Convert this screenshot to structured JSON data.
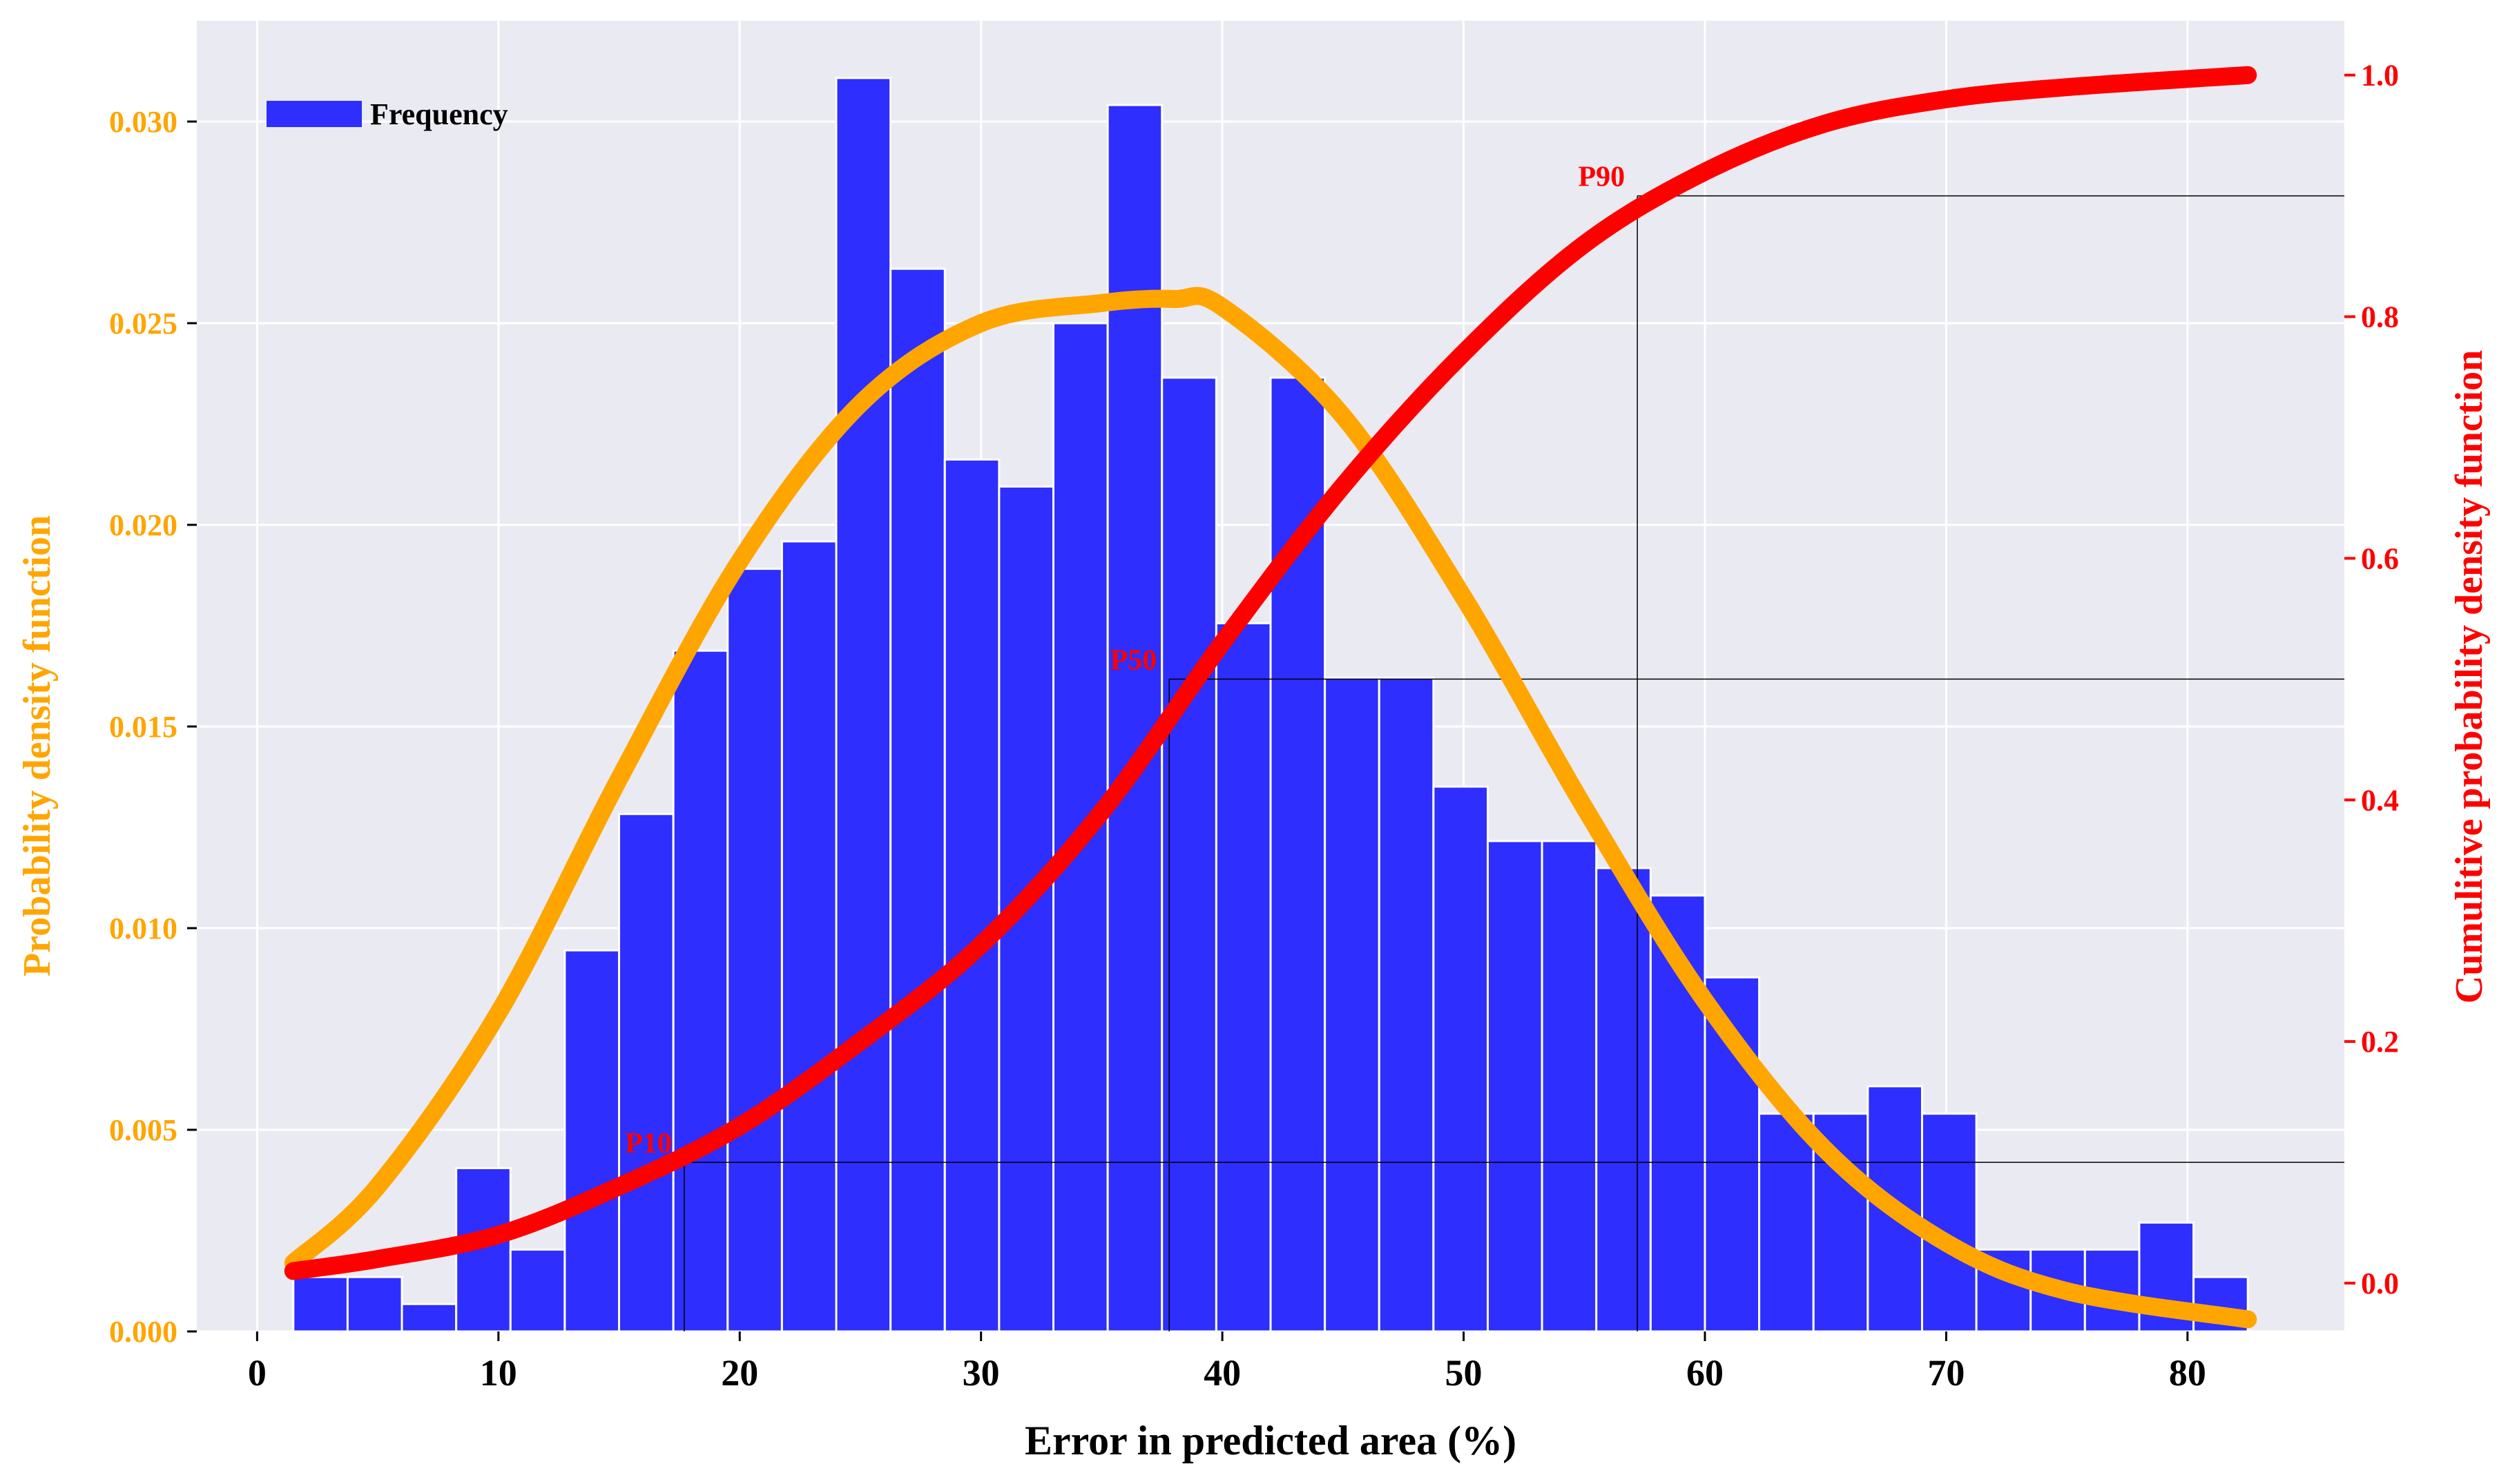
{
  "chart_data": {
    "type": "bar",
    "xlabel": "Error in predicted area (%)",
    "ylabel": "Probability density function",
    "y2label": "Cumulitive probability density function",
    "x_ticks": [
      "0",
      "10",
      "20",
      "30",
      "40",
      "50",
      "60",
      "70",
      "80"
    ],
    "y_ticks": [
      "0.000",
      "0.005",
      "0.010",
      "0.015",
      "0.020",
      "0.025",
      "0.030"
    ],
    "y2_ticks": [
      "0.0",
      "0.2",
      "0.4",
      "0.6",
      "0.8",
      "1.0"
    ],
    "xlim": [
      -2.5,
      86.5
    ],
    "ylim": [
      0.0,
      0.0325
    ],
    "y2lim": [
      -0.04,
      1.045
    ],
    "grid": true,
    "legend_position": "top-left",
    "bins": {
      "start": 1.5,
      "width": 2.25,
      "values": [
        0.00135,
        0.00135,
        0.00068,
        0.00405,
        0.00203,
        0.00945,
        0.01283,
        0.01688,
        0.01891,
        0.01959,
        0.03108,
        0.02635,
        0.02162,
        0.02095,
        0.025,
        0.03041,
        0.02365,
        0.01756,
        0.02365,
        0.01621,
        0.01621,
        0.01351,
        0.01216,
        0.01216,
        0.01149,
        0.01081,
        0.00878,
        0.0054,
        0.0054,
        0.00608,
        0.0054,
        0.00203,
        0.00203,
        0.00203,
        0.0027,
        0.00135
      ]
    },
    "series": [
      {
        "name": "Frequency",
        "type": "bar",
        "axis": "left",
        "color": "#2E2EFF"
      },
      {
        "type": "line",
        "axis": "left",
        "color": "#FFA500",
        "x": [
          1.5,
          5,
          10,
          15,
          20,
          25,
          30,
          35,
          38,
          40,
          45,
          50,
          55,
          60,
          65,
          70,
          75,
          82.5
        ],
        "y": [
          0.0017,
          0.0036,
          0.0079,
          0.0137,
          0.0191,
          0.023,
          0.025,
          0.0255,
          0.0256,
          0.0254,
          0.0227,
          0.0182,
          0.013,
          0.0082,
          0.0045,
          0.0022,
          0.001,
          0.0003
        ]
      },
      {
        "type": "line",
        "axis": "right",
        "color": "#FF0000",
        "x": [
          1.5,
          5,
          10,
          15,
          20,
          25,
          30,
          35,
          40,
          45,
          50,
          55,
          60,
          65,
          70,
          75,
          82.5
        ],
        "y": [
          0.01,
          0.02,
          0.04,
          0.08,
          0.13,
          0.2,
          0.28,
          0.39,
          0.53,
          0.66,
          0.77,
          0.86,
          0.92,
          0.96,
          0.98,
          0.99,
          1.0
        ]
      }
    ],
    "annotations": [
      {
        "label": "P10",
        "x": 17.7,
        "y": 0.1
      },
      {
        "label": "P50",
        "x": 37.8,
        "y": 0.5
      },
      {
        "label": "P90",
        "x": 57.2,
        "y": 0.9
      }
    ]
  }
}
